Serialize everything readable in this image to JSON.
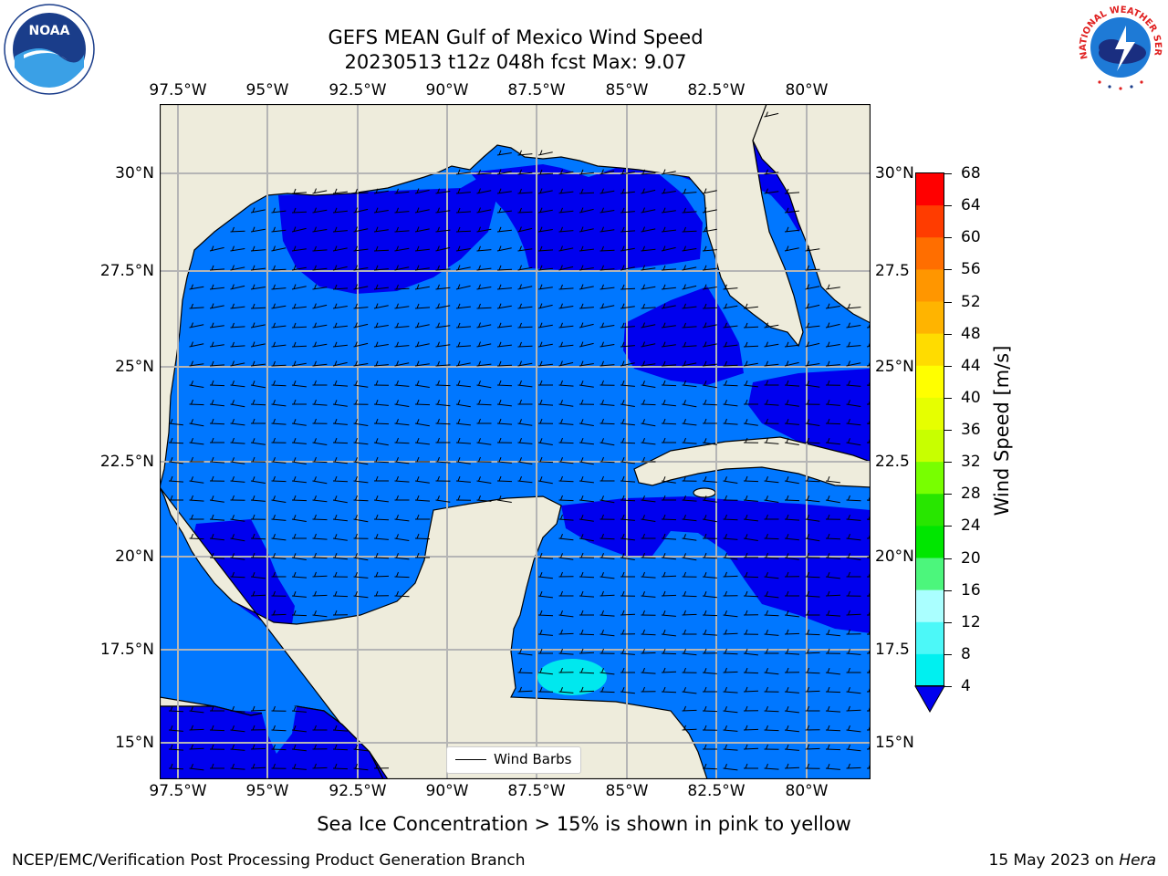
{
  "header": {
    "title_line1": "GEFS MEAN Gulf of Mexico Wind Speed",
    "title_line2": "20230513 t12z 048h fcst   Max: 9.07"
  },
  "logos": {
    "left": {
      "text": "NOAA",
      "icon": "noaa-logo"
    },
    "right": {
      "text": "NATIONAL WEATHER SERVICE",
      "icon": "nws-logo"
    }
  },
  "map": {
    "lon_ticks": [
      "97.5°W",
      "95°W",
      "92.5°W",
      "90°W",
      "87.5°W",
      "85°W",
      "82.5°W",
      "80°W"
    ],
    "lat_ticks_left": [
      "30°N",
      "27.5°N",
      "25°N",
      "22.5°N",
      "20°N",
      "17.5°N",
      "15°N"
    ],
    "lat_ticks_right": [
      "30°N",
      "27.5",
      "25°N",
      "22.5",
      "20°N",
      "17.5",
      "15°N"
    ],
    "extent": {
      "lon": [
        -98.0,
        -78.2
      ],
      "lat": [
        14.0,
        31.8
      ]
    },
    "colors": {
      "land": "#eeecdc",
      "ocean_4": "#0000ee",
      "ocean_4_8": "#0077ff",
      "ocean_8_12": "#00e8ee",
      "grid": "#b5b5b5"
    },
    "wind_barbs_legend": "Wind Barbs"
  },
  "colorbar": {
    "label": "Wind Speed [m/s]",
    "ticks": [
      "68",
      "64",
      "60",
      "56",
      "52",
      "48",
      "44",
      "40",
      "36",
      "32",
      "28",
      "24",
      "20",
      "16",
      "12",
      "8",
      "4"
    ],
    "colors": [
      "#ff0000",
      "#ff3c00",
      "#ff6e00",
      "#ff9600",
      "#ffb400",
      "#ffdc00",
      "#ffff00",
      "#e6ff00",
      "#c8ff00",
      "#78ff00",
      "#28e600",
      "#00e600",
      "#4cf67c",
      "#aaffff",
      "#4cf8f8",
      "#00f0f0",
      "#0078ff"
    ],
    "extend_color": "#0000ee"
  },
  "footer": {
    "caption": "Sea Ice Concentration > 15% is shown in pink to yellow",
    "credit": "NCEP/EMC/Verification Post Processing Product Generation Branch",
    "date": "15 May 2023 on ",
    "machine": "Hera"
  }
}
